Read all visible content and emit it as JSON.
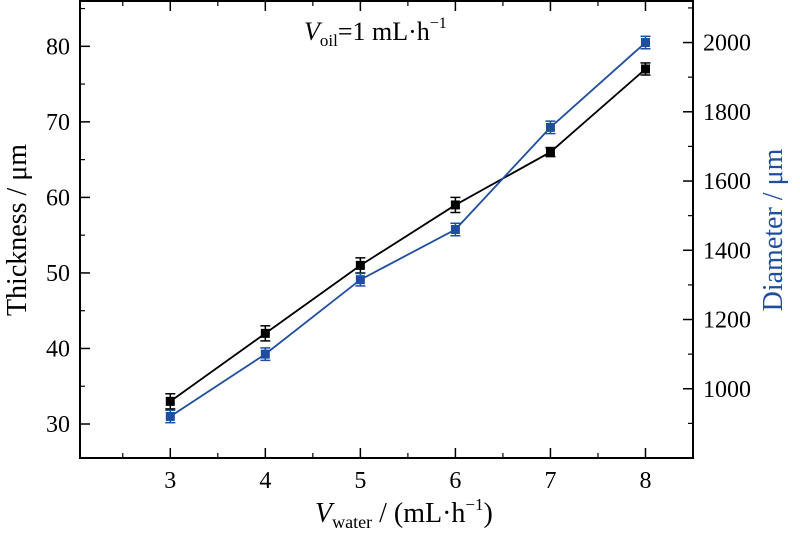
{
  "chart_data": {
    "type": "line",
    "annotation": {
      "var": "V",
      "sub": "oil",
      "rest": "=1 mL·h",
      "sup": "−1"
    },
    "x": [
      3,
      4,
      5,
      6,
      7,
      8
    ],
    "xlim": [
      2.05,
      8.5
    ],
    "xticks": [
      3,
      4,
      5,
      6,
      7,
      8
    ],
    "xlabel": {
      "var": "V",
      "sub": "water",
      "rest": " / (mL·h",
      "sup": "−1",
      "end": ")"
    },
    "ylabel_left": "Thickness / μm",
    "ylim_left": [
      25.5,
      86
    ],
    "yticks_left": [
      30,
      40,
      50,
      60,
      70,
      80
    ],
    "ylabel_right": "Diameter / μm",
    "ylim_right": [
      800,
      2120
    ],
    "yticks_right": [
      1000,
      1200,
      1400,
      1600,
      1800,
      2000
    ],
    "series": [
      {
        "axis": "left",
        "color": "#000000",
        "marker": "square",
        "values": [
          33,
          42,
          51,
          59,
          66,
          77
        ],
        "errors": [
          1.0,
          1.0,
          1.0,
          1.0,
          0.6,
          0.8
        ]
      },
      {
        "axis": "right",
        "color": "#1f4e9e",
        "marker": "square",
        "values": [
          920,
          1100,
          1315,
          1460,
          1755,
          2000
        ],
        "errors": [
          18,
          18,
          18,
          18,
          18,
          18
        ]
      }
    ],
    "grid": false,
    "legend": "none"
  }
}
